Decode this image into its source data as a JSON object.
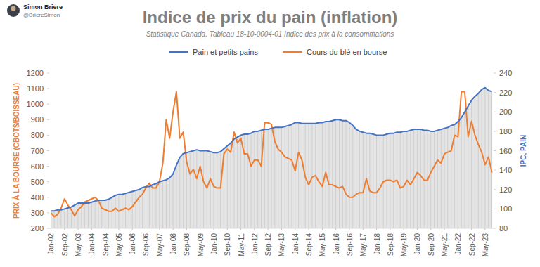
{
  "chart_data": {
    "type": "line",
    "author": "Simon Briere",
    "handle": "@BriereSimon",
    "title": "Indice de prix du pain (inflation)",
    "subtitle": "Statistique Canada. Tableau 18-10-0004-01  Indice des prix à la consommations",
    "y_label": "PRIX À LA BOURSE (CBOT$/BOISSEAU)",
    "y2_label": "IPC, PAIN",
    "legend": "top",
    "grid": false,
    "categories": [
      "Jan-02",
      null,
      null,
      null,
      "Sep-02",
      null,
      null,
      null,
      "May-03",
      null,
      null,
      null,
      "Jan-04",
      null,
      null,
      null,
      "Sep-04",
      null,
      null,
      null,
      "May-05",
      null,
      null,
      null,
      "Jan-06",
      null,
      null,
      null,
      "Sep-06",
      null,
      null,
      null,
      "May-07",
      null,
      null,
      null,
      "Jan-08",
      null,
      null,
      null,
      "Sep-08",
      null,
      null,
      null,
      "May-09",
      null,
      null,
      null,
      "Jan-10",
      null,
      null,
      null,
      "Sep-10",
      null,
      null,
      null,
      "May-11",
      null,
      null,
      null,
      "Jan-12",
      null,
      null,
      null,
      "Sep-12",
      null,
      null,
      null,
      "May-13",
      null,
      null,
      null,
      "Jan-14",
      null,
      null,
      null,
      "Sep-14",
      null,
      null,
      null,
      "May-15",
      null,
      null,
      null,
      "Jan-16",
      null,
      null,
      null,
      "Sep-16",
      null,
      null,
      null,
      "May-17",
      null,
      null,
      null,
      "Jan-18",
      null,
      null,
      null,
      "Sep-18",
      null,
      null,
      null,
      "May-19",
      null,
      null,
      null,
      "Jan-20",
      null,
      null,
      null,
      "Sep-20",
      null,
      null,
      null,
      "May-21",
      null,
      null,
      null,
      "Jan-22",
      null,
      null,
      null,
      "Sep-22",
      null,
      null,
      null,
      "May-23",
      null,
      null
    ],
    "series": [
      {
        "name": "Pain et petits pains",
        "color": "#4472c4",
        "axis": "y2",
        "values": [
          98,
          98,
          99,
          99,
          100,
          101,
          102,
          104,
          106,
          106,
          106,
          106,
          107,
          108,
          109,
          109,
          109,
          110,
          112,
          114,
          115,
          115,
          116,
          117,
          118,
          119,
          120,
          122,
          123,
          123,
          125,
          126,
          128,
          129,
          130,
          132,
          136,
          145,
          153,
          157,
          158,
          159,
          160,
          161,
          160,
          160,
          160,
          159,
          158,
          158,
          159,
          162,
          165,
          168,
          172,
          174,
          176,
          177,
          177,
          178,
          180,
          180,
          181,
          182,
          182,
          183,
          184,
          184,
          184,
          185,
          186,
          187,
          189,
          189,
          188,
          188,
          188,
          188,
          188,
          189,
          189,
          190,
          190,
          191,
          192,
          192,
          191,
          191,
          189,
          186,
          182,
          180,
          179,
          178,
          178,
          177,
          176,
          176,
          176,
          177,
          178,
          178,
          179,
          179,
          180,
          180,
          181,
          182,
          182,
          182,
          181,
          181,
          180,
          180,
          181,
          182,
          183,
          184,
          186,
          187,
          190,
          194,
          200,
          206,
          212,
          216,
          219,
          223,
          225,
          222,
          221
        ]
      },
      {
        "name": "Cours du blé en bourse",
        "color": "#ed7d31",
        "values": [
          300,
          275,
          290,
          330,
          390,
          350,
          320,
          280,
          320,
          340,
          370,
          380,
          390,
          400,
          380,
          330,
          320,
          310,
          310,
          330,
          310,
          320,
          330,
          320,
          340,
          370,
          400,
          420,
          460,
          490,
          460,
          460,
          500,
          620,
          900,
          780,
          950,
          1080,
          780,
          820,
          630,
          550,
          580,
          520,
          600,
          500,
          460,
          520,
          470,
          460,
          460,
          680,
          710,
          690,
          820,
          750,
          780,
          680,
          680,
          600,
          640,
          640,
          600,
          880,
          880,
          870,
          760,
          710,
          690,
          660,
          650,
          640,
          570,
          690,
          640,
          530,
          480,
          530,
          540,
          500,
          470,
          560,
          480,
          480,
          470,
          460,
          470,
          420,
          400,
          400,
          420,
          430,
          430,
          520,
          440,
          430,
          430,
          460,
          500,
          510,
          510,
          500,
          510,
          460,
          470,
          510,
          480,
          520,
          560,
          540,
          510,
          510,
          560,
          600,
          640,
          620,
          680,
          690,
          700,
          800,
          790,
          1080,
          1080,
          790,
          890,
          800,
          740,
          690,
          610,
          660,
          560
        ]
      }
    ],
    "ylim": [
      200,
      1200
    ],
    "yticks": [
      200,
      300,
      400,
      500,
      600,
      700,
      800,
      900,
      1000,
      1100,
      1200
    ],
    "y2lim": [
      80,
      240
    ],
    "y2ticks": [
      80,
      100,
      120,
      140,
      160,
      180,
      200,
      220,
      240
    ]
  }
}
